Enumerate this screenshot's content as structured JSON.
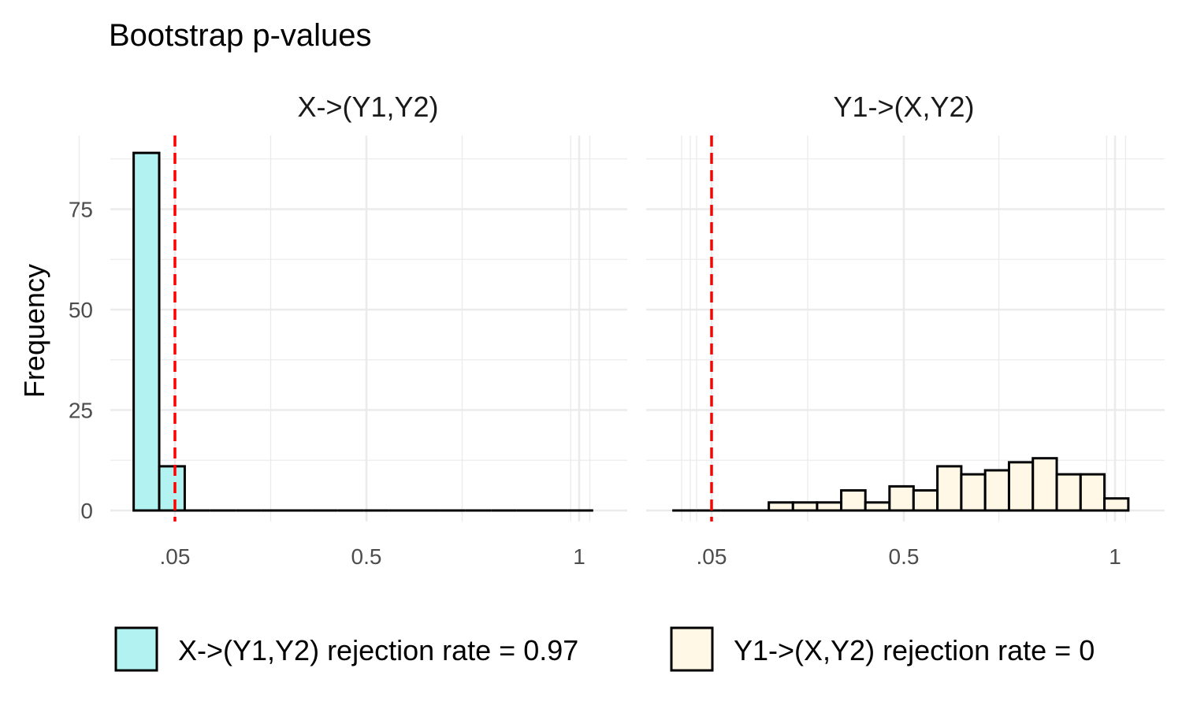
{
  "chart_data": {
    "type": "bar",
    "title": "Bootstrap p-values",
    "ylabel": "Frequency",
    "xlabel": "",
    "ylim": [
      0,
      92
    ],
    "y_ticks": [
      0,
      25,
      50,
      75
    ],
    "y_minor": [
      12.5,
      37.5,
      62.5,
      87.5
    ],
    "x_tick_labels": [
      ".05",
      "0.5",
      "1"
    ],
    "threshold": 0.05,
    "threshold_color": "#ff0000",
    "panels": [
      {
        "strip": "X->(Y1,Y2)",
        "fill": "#b2f2f0",
        "x_ticks": [
          0.05,
          0.5,
          1.0
        ],
        "x_minor": [
          -0.175,
          0.275,
          0.725,
          0.98,
          1.0,
          1.025
        ],
        "bins": {
          "start": 0.0,
          "width": 0.06,
          "counts": [
            89,
            11,
            0,
            0,
            0,
            0,
            0,
            0,
            0,
            0,
            0,
            0,
            0,
            0,
            0,
            0,
            0,
            0
          ]
        }
      },
      {
        "strip": "Y1->(X,Y2)",
        "fill": "#fff8e6",
        "x_ticks": [
          0.05,
          0.5,
          1.0
        ],
        "x_minor": [
          -0.02,
          0.0,
          0.015,
          0.275,
          0.725,
          0.98,
          1.0,
          1.025
        ],
        "bins": {
          "start": 0.0,
          "width": 0.0565,
          "counts": [
            0,
            0,
            0,
            0,
            2,
            2,
            2,
            5,
            2,
            6,
            5,
            11,
            9,
            10,
            12,
            13,
            9,
            9,
            3
          ]
        }
      }
    ],
    "legend": {
      "position": "bottom",
      "items": [
        {
          "label": "X->(Y1,Y2) rejection rate =  0.97",
          "color": "#b2f2f0"
        },
        {
          "label": "Y1->(X,Y2) rejection rate =  0",
          "color": "#fff8e6"
        }
      ]
    }
  }
}
